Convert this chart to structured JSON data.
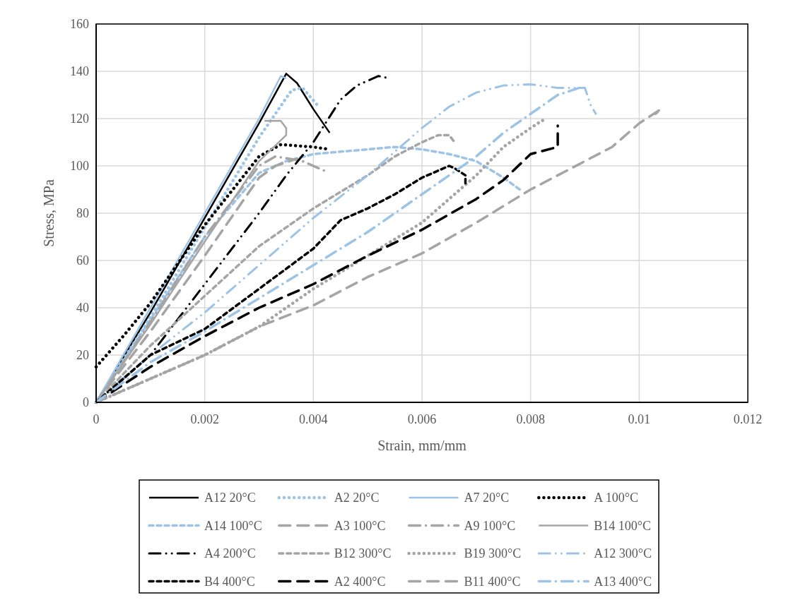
{
  "chart_data": {
    "type": "line",
    "xlabel": "Strain, mm/mm",
    "ylabel": "Stress, MPa",
    "xlim": [
      0,
      0.012
    ],
    "xticks": [
      0,
      0.002,
      0.004,
      0.006,
      0.008,
      0.01,
      0.012
    ],
    "ylim": [
      0,
      160
    ],
    "yticks": [
      0,
      20,
      40,
      60,
      80,
      100,
      120,
      140,
      160
    ],
    "grid": true,
    "legend": "bottom",
    "marker": "none",
    "series": [
      {
        "name": "A12 20°C",
        "color": "#000000",
        "line_style": "solid",
        "x": [
          0,
          0.001,
          0.002,
          0.003,
          0.0035,
          0.0037,
          0.004,
          0.0043
        ],
        "values": [
          0,
          38,
          78,
          118,
          139,
          135,
          124,
          114
        ]
      },
      {
        "name": "A2 20°C",
        "color": "#9dc3e6",
        "line_style": "dotted",
        "x": [
          0,
          0.001,
          0.002,
          0.003,
          0.0033,
          0.0036,
          0.0038,
          0.0041
        ],
        "values": [
          0,
          36,
          74,
          112,
          122,
          132,
          133,
          125
        ]
      },
      {
        "name": "A7 20°C",
        "color": "#9dc3e6",
        "line_style": "solid",
        "x": [
          0,
          0.001,
          0.002,
          0.003,
          0.0034,
          0.0035
        ],
        "values": [
          0,
          40,
          80,
          120,
          138,
          137
        ]
      },
      {
        "name": "A 100°C",
        "color": "#000000",
        "line_style": "dotted",
        "x": [
          0,
          0.0005,
          0.001,
          0.002,
          0.003,
          0.0034,
          0.004,
          0.0043
        ],
        "values": [
          15,
          28,
          42,
          75,
          104,
          109,
          108,
          107
        ]
      },
      {
        "name": "A14 100°C",
        "color": "#9dc3e6",
        "line_style": "dashed",
        "x": [
          0,
          0.001,
          0.002,
          0.003,
          0.0035,
          0.004,
          0.005,
          0.0055,
          0.006,
          0.0065,
          0.007,
          0.0075,
          0.0078
        ],
        "values": [
          0,
          35,
          70,
          97,
          102,
          105,
          107,
          108,
          107,
          105,
          102,
          95,
          90
        ]
      },
      {
        "name": "A3 100°C",
        "color": "#a5a5a5",
        "line_style": "longdash",
        "x": [
          0,
          0.001,
          0.002,
          0.003,
          0.0033,
          0.0037
        ],
        "values": [
          0,
          30,
          62,
          95,
          100,
          103
        ]
      },
      {
        "name": "A9 100°C",
        "color": "#a5a5a5",
        "line_style": "dashdot",
        "x": [
          0,
          0.001,
          0.002,
          0.003,
          0.0033,
          0.0038,
          0.0042
        ],
        "values": [
          0,
          34,
          70,
          100,
          104,
          102,
          98
        ]
      },
      {
        "name": "B14 100°C",
        "color": "#a5a5a5",
        "line_style": "solid",
        "x": [
          0,
          0.001,
          0.002,
          0.003,
          0.0035,
          0.0035,
          0.0034,
          0.0031
        ],
        "values": [
          0,
          33,
          68,
          102,
          113,
          116,
          119,
          119
        ]
      },
      {
        "name": "A4 200°C",
        "color": "#000000",
        "line_style": "dashdotdot",
        "x": [
          0,
          0.001,
          0.002,
          0.003,
          0.0035,
          0.004,
          0.0045,
          0.0048,
          0.005,
          0.0052,
          0.0054
        ],
        "values": [
          0,
          20,
          50,
          80,
          96,
          110,
          128,
          134,
          136,
          138,
          137
        ]
      },
      {
        "name": "B12 300°C",
        "color": "#a5a5a5",
        "line_style": "dashed",
        "x": [
          0,
          0.001,
          0.002,
          0.003,
          0.004,
          0.005,
          0.0055,
          0.006,
          0.0063,
          0.0065,
          0.0066
        ],
        "values": [
          0,
          24,
          45,
          66,
          82,
          96,
          104,
          110,
          113,
          113,
          110
        ]
      },
      {
        "name": "B19 300°C",
        "color": "#a5a5a5",
        "line_style": "dotted",
        "x": [
          0,
          0.002,
          0.003,
          0.004,
          0.005,
          0.006,
          0.007,
          0.0075,
          0.008,
          0.0082,
          0.0083
        ],
        "values": [
          0,
          20,
          32,
          48,
          62,
          76,
          96,
          108,
          116,
          119,
          120
        ]
      },
      {
        "name": "A12 300°C",
        "color": "#9dc3e6",
        "line_style": "dashdotdot",
        "x": [
          0,
          0.001,
          0.002,
          0.003,
          0.004,
          0.005,
          0.006,
          0.0065,
          0.007,
          0.0075,
          0.008,
          0.0085,
          0.0088,
          0.009,
          0.0091,
          0.0092
        ],
        "values": [
          0,
          20,
          38,
          58,
          78,
          96,
          116,
          125,
          131,
          134,
          134.5,
          133,
          133,
          133,
          126,
          122
        ]
      },
      {
        "name": "B4 400°C",
        "color": "#000000",
        "line_style": "dashed",
        "x": [
          0,
          0.001,
          0.002,
          0.003,
          0.004,
          0.0045,
          0.005,
          0.0055,
          0.006,
          0.0065,
          0.0066,
          0.0068,
          0.0068
        ],
        "values": [
          0,
          20,
          31,
          48,
          65,
          77,
          82,
          88,
          95,
          100,
          99,
          96,
          92
        ]
      },
      {
        "name": "A2 400°C",
        "color": "#000000",
        "line_style": "longdash",
        "x": [
          0,
          0.001,
          0.002,
          0.003,
          0.004,
          0.005,
          0.006,
          0.007,
          0.0075,
          0.008,
          0.0085,
          0.0085
        ],
        "values": [
          0,
          15,
          28,
          40,
          50,
          62,
          73,
          86,
          94,
          105,
          108,
          117
        ]
      },
      {
        "name": "B11 400°C",
        "color": "#a5a5a5",
        "line_style": "longdash",
        "x": [
          0,
          0.002,
          0.003,
          0.004,
          0.005,
          0.006,
          0.007,
          0.008,
          0.009,
          0.0095,
          0.01,
          0.0104,
          0.0103
        ],
        "values": [
          0,
          20,
          32,
          41,
          53,
          63,
          76,
          90,
          102,
          108,
          118,
          124,
          122
        ]
      },
      {
        "name": "A13 400°C",
        "color": "#9dc3e6",
        "line_style": "dashdot",
        "x": [
          0,
          0.001,
          0.002,
          0.003,
          0.004,
          0.005,
          0.006,
          0.007,
          0.0075,
          0.008,
          0.0085,
          0.0089
        ],
        "values": [
          0,
          17,
          30,
          44,
          58,
          72,
          88,
          104,
          114,
          122,
          130,
          133
        ]
      }
    ]
  }
}
